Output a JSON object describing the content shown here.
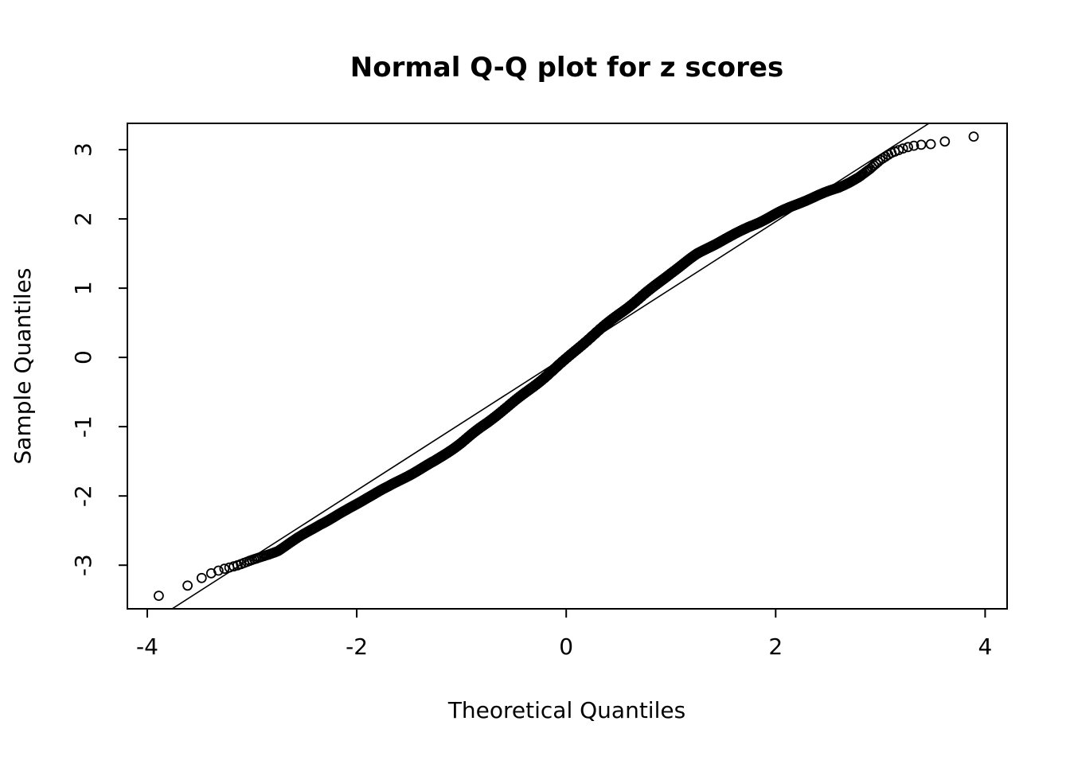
{
  "colors": {
    "foreground": "#000000",
    "background": "#ffffff"
  },
  "chart_data": {
    "type": "scatter",
    "title": "Normal Q-Q plot for z scores",
    "xlabel": "Theoretical Quantiles",
    "ylabel": "Sample Quantiles",
    "x_ticks": [
      -4,
      -2,
      0,
      2,
      4
    ],
    "y_ticks": [
      -3,
      -2,
      -1,
      0,
      1,
      2,
      3
    ],
    "xlim": [
      -4.19,
      4.21
    ],
    "ylim": [
      -3.63,
      3.38
    ],
    "grid": false,
    "legend": "none",
    "marker": "open-circle",
    "point_color": "#000000",
    "n_points": 10000,
    "reference_line": {
      "slope": 0.97,
      "intercept": 0.02,
      "color": "#000000"
    },
    "quantile_curve_control_points": [
      [
        -3.95,
        -3.47
      ],
      [
        -3.89,
        -3.45
      ],
      [
        -3.62,
        -3.3
      ],
      [
        -3.45,
        -3.16
      ],
      [
        -3.35,
        -3.09
      ],
      [
        -3.25,
        -3.03
      ],
      [
        -3.15,
        -2.99
      ],
      [
        -3.05,
        -2.95
      ],
      [
        -2.95,
        -2.91
      ],
      [
        -2.85,
        -2.86
      ],
      [
        -2.75,
        -2.8
      ],
      [
        -2.65,
        -2.7
      ],
      [
        -2.55,
        -2.6
      ],
      [
        -2.45,
        -2.5
      ],
      [
        -2.35,
        -2.4
      ],
      [
        -2.25,
        -2.32
      ],
      [
        -2.1,
        -2.2
      ],
      [
        -1.9,
        -2.03
      ],
      [
        -1.7,
        -1.88
      ],
      [
        -1.5,
        -1.7
      ],
      [
        -1.25,
        -1.48
      ],
      [
        -1.0,
        -1.23
      ],
      [
        -0.75,
        -0.95
      ],
      [
        -0.5,
        -0.64
      ],
      [
        -0.25,
        -0.33
      ],
      [
        0.0,
        -0.02
      ],
      [
        0.25,
        0.3
      ],
      [
        0.5,
        0.62
      ],
      [
        0.75,
        0.93
      ],
      [
        1.0,
        1.22
      ],
      [
        1.25,
        1.48
      ],
      [
        1.5,
        1.7
      ],
      [
        1.75,
        1.9
      ],
      [
        2.0,
        2.07
      ],
      [
        2.2,
        2.2
      ],
      [
        2.4,
        2.33
      ],
      [
        2.6,
        2.46
      ],
      [
        2.8,
        2.62
      ],
      [
        2.9,
        2.72
      ],
      [
        3.0,
        2.85
      ],
      [
        3.1,
        2.95
      ],
      [
        3.2,
        3.0
      ],
      [
        3.35,
        3.05
      ],
      [
        3.5,
        3.09
      ],
      [
        3.62,
        3.13
      ],
      [
        3.89,
        3.2
      ],
      [
        3.95,
        3.21
      ]
    ],
    "extreme_points": {
      "low": [
        [
          -3.89,
          -3.45
        ],
        [
          -3.62,
          -3.3
        ],
        [
          -3.43,
          -3.16
        ]
      ],
      "high": [
        [
          3.43,
          3.06
        ],
        [
          3.62,
          3.13
        ],
        [
          3.89,
          3.2
        ]
      ]
    }
  }
}
